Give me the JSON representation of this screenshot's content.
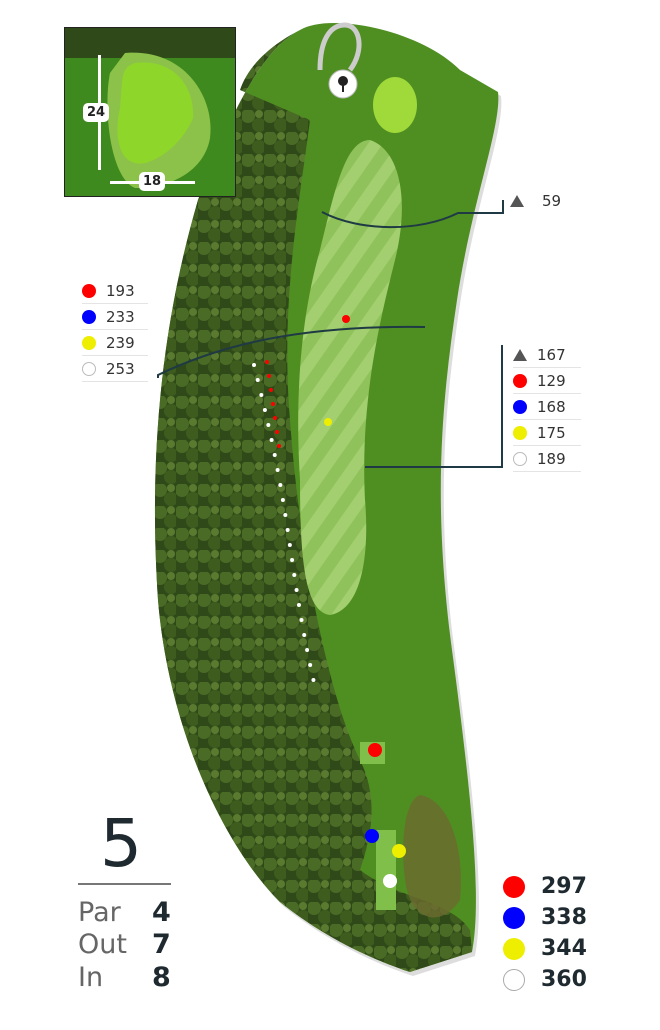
{
  "hole": {
    "number": "5",
    "stats": [
      {
        "label": "Par",
        "value": "4"
      },
      {
        "label": "Out",
        "value": "7"
      },
      {
        "label": "In",
        "value": "8"
      }
    ]
  },
  "green_inset": {
    "depth": "24",
    "width": "18"
  },
  "hazard_marker": {
    "icon": "triangle-marker-icon",
    "value": "59"
  },
  "left_callout": [
    {
      "color": "#ff0000",
      "value": "193"
    },
    {
      "color": "#0000ff",
      "value": "233"
    },
    {
      "color": "#eeee00",
      "value": "239"
    },
    {
      "color": "#ffffff",
      "value": "253"
    }
  ],
  "right_callout": [
    {
      "icon": "triangle-marker-icon",
      "color": "#555555",
      "value": "167"
    },
    {
      "color": "#ff0000",
      "value": "129"
    },
    {
      "color": "#0000ff",
      "value": "168"
    },
    {
      "color": "#eeee00",
      "value": "175"
    },
    {
      "color": "#ffffff",
      "value": "189"
    }
  ],
  "tees": [
    {
      "color": "#ff0000",
      "yards": "297"
    },
    {
      "color": "#0000ff",
      "yards": "338"
    },
    {
      "color": "#eeee00",
      "yards": "344"
    },
    {
      "color": "#ffffff",
      "yards": "360"
    }
  ]
}
